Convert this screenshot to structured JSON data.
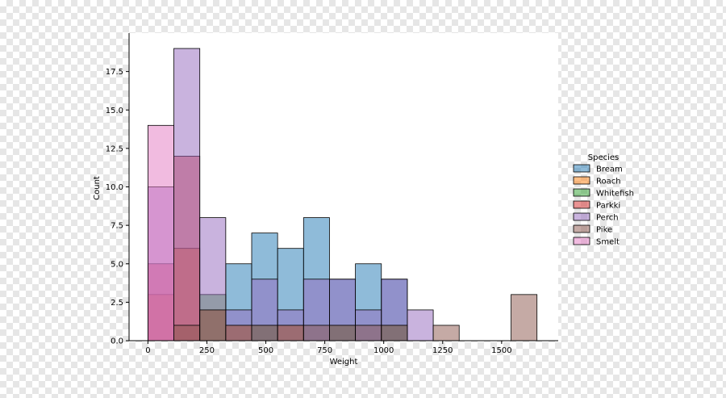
{
  "chart_data": {
    "type": "histogram",
    "title": "",
    "xlabel": "Weight",
    "ylabel": "Count",
    "xlim": [
      -80,
      1740
    ],
    "ylim": [
      0,
      20
    ],
    "xticks": [
      0,
      250,
      500,
      750,
      1000,
      1250,
      1500
    ],
    "yticks": [
      0.0,
      2.5,
      5.0,
      7.5,
      10.0,
      12.5,
      15.0,
      17.5
    ],
    "ytick_labels": [
      "0.0",
      "2.5",
      "5.0",
      "7.5",
      "10.0",
      "12.5",
      "15.0",
      "17.5"
    ],
    "bin_edges": [
      0,
      110,
      220,
      330,
      440,
      550,
      660,
      770,
      880,
      990,
      1100,
      1210,
      1320,
      1430,
      1540,
      1650
    ],
    "stack": "layer",
    "series": [
      {
        "name": "Bream",
        "color": "#1f77b4",
        "counts": [
          0,
          0,
          0,
          5,
          7,
          6,
          8,
          4,
          5,
          4,
          0,
          0,
          0,
          0,
          0
        ]
      },
      {
        "name": "Roach",
        "color": "#ff7f0e",
        "counts": [
          3,
          6,
          2,
          1,
          0,
          1,
          0,
          0,
          0,
          0,
          0,
          0,
          0,
          0,
          0
        ]
      },
      {
        "name": "Whitefish",
        "color": "#2ca02c",
        "counts": [
          0,
          0,
          3,
          0,
          1,
          0,
          0,
          1,
          0,
          1,
          0,
          0,
          0,
          0,
          0
        ]
      },
      {
        "name": "Parkki",
        "color": "#d62728",
        "counts": [
          5,
          12,
          0,
          0,
          0,
          0,
          0,
          0,
          0,
          0,
          0,
          0,
          0,
          0,
          0
        ]
      },
      {
        "name": "Perch",
        "color": "#9467bd",
        "counts": [
          10,
          19,
          8,
          2,
          4,
          2,
          4,
          4,
          2,
          4,
          2,
          0,
          0,
          0,
          0
        ]
      },
      {
        "name": "Pike",
        "color": "#8c564b",
        "counts": [
          0,
          1,
          2,
          1,
          1,
          1,
          1,
          1,
          1,
          1,
          0,
          1,
          0,
          0,
          3
        ]
      },
      {
        "name": "Smelt",
        "color": "#e377c2",
        "counts": [
          14,
          0,
          0,
          0,
          0,
          0,
          0,
          0,
          0,
          0,
          0,
          0,
          0,
          0,
          0
        ]
      }
    ],
    "legend": {
      "title": "Species",
      "placement": "right",
      "frameon": false
    },
    "grid": false
  }
}
